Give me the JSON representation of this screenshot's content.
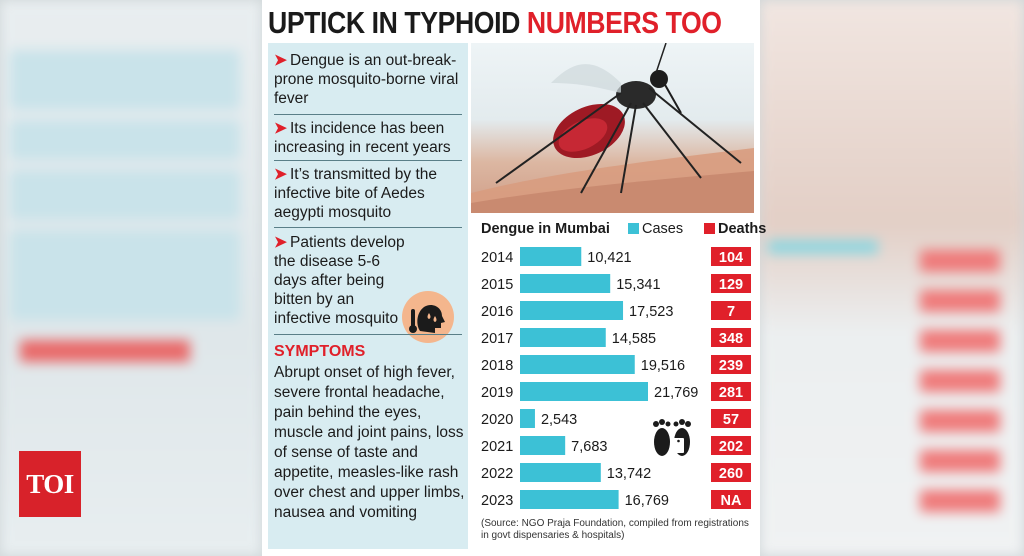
{
  "headline": {
    "part1": "UPTICK IN TYPHOID ",
    "part2": "NUMBERS TOO"
  },
  "facts": [
    "Dengue is an out-break-prone mosquito-borne viral fever",
    "Its incidence has been increasing in recent years",
    "It’s transmitted by the infective bite of Aedes aegypti mosquito",
    "Patients develop the disease 5-6 days after being bitten by an infective mosquito"
  ],
  "fact_arrow": "➤",
  "symptoms": {
    "title": "SYMPTOMS",
    "text": "Abrupt onset of high fever, severe frontal headache, pain behind the eyes, muscle and joint pains, loss of sense of taste and appetite, measles-like rash over chest and upper limbs, nausea and vomiting"
  },
  "logo": "TOI",
  "colors": {
    "cases": "#3cc1d6",
    "deaths": "#e0202a",
    "panel": "#d8ecf1"
  },
  "icons": [
    "mosquito-photo",
    "sick-person-icon",
    "footprints-icon",
    "toe-tag-icon"
  ],
  "chart_data": {
    "type": "bar",
    "title": "Dengue in Mumbai",
    "legend": [
      "Cases",
      "Deaths"
    ],
    "categories": [
      "2014",
      "2015",
      "2016",
      "2017",
      "2018",
      "2019",
      "2020",
      "2021",
      "2022",
      "2023"
    ],
    "series": [
      {
        "name": "Cases",
        "values": [
          10421,
          15341,
          17523,
          14585,
          19516,
          21769,
          2543,
          7683,
          13742,
          16769
        ],
        "labels": [
          "10,421",
          "15,341",
          "17,523",
          "14,585",
          "19,516",
          "21,769",
          "2,543",
          "7,683",
          "13,742",
          "16,769"
        ]
      },
      {
        "name": "Deaths",
        "values": [
          104,
          129,
          7,
          348,
          239,
          281,
          57,
          202,
          260,
          null
        ],
        "labels": [
          "104",
          "129",
          "7",
          "348",
          "239",
          "281",
          "57",
          "202",
          "260",
          "NA"
        ]
      }
    ],
    "xlim": [
      0,
      21769
    ]
  },
  "source": "(Source: NGO Praja Foundation, compiled from registrations in govt dispensaries & hospitals)"
}
